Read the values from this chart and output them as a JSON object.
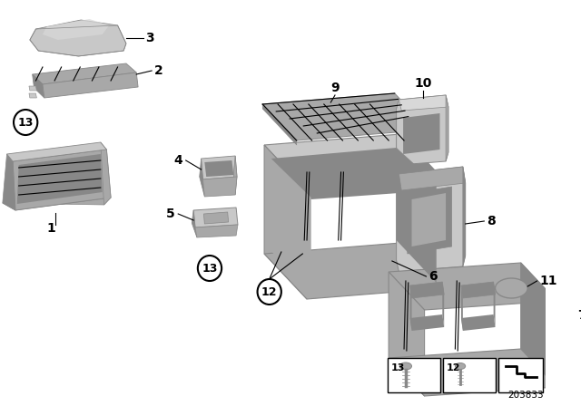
{
  "bg_color": "#ffffff",
  "diagram_number": "203833",
  "gray1": "#c8c8c8",
  "gray2": "#a8a8a8",
  "gray3": "#888888",
  "gray4": "#d8d8d8",
  "black": "#000000",
  "white": "#ffffff"
}
